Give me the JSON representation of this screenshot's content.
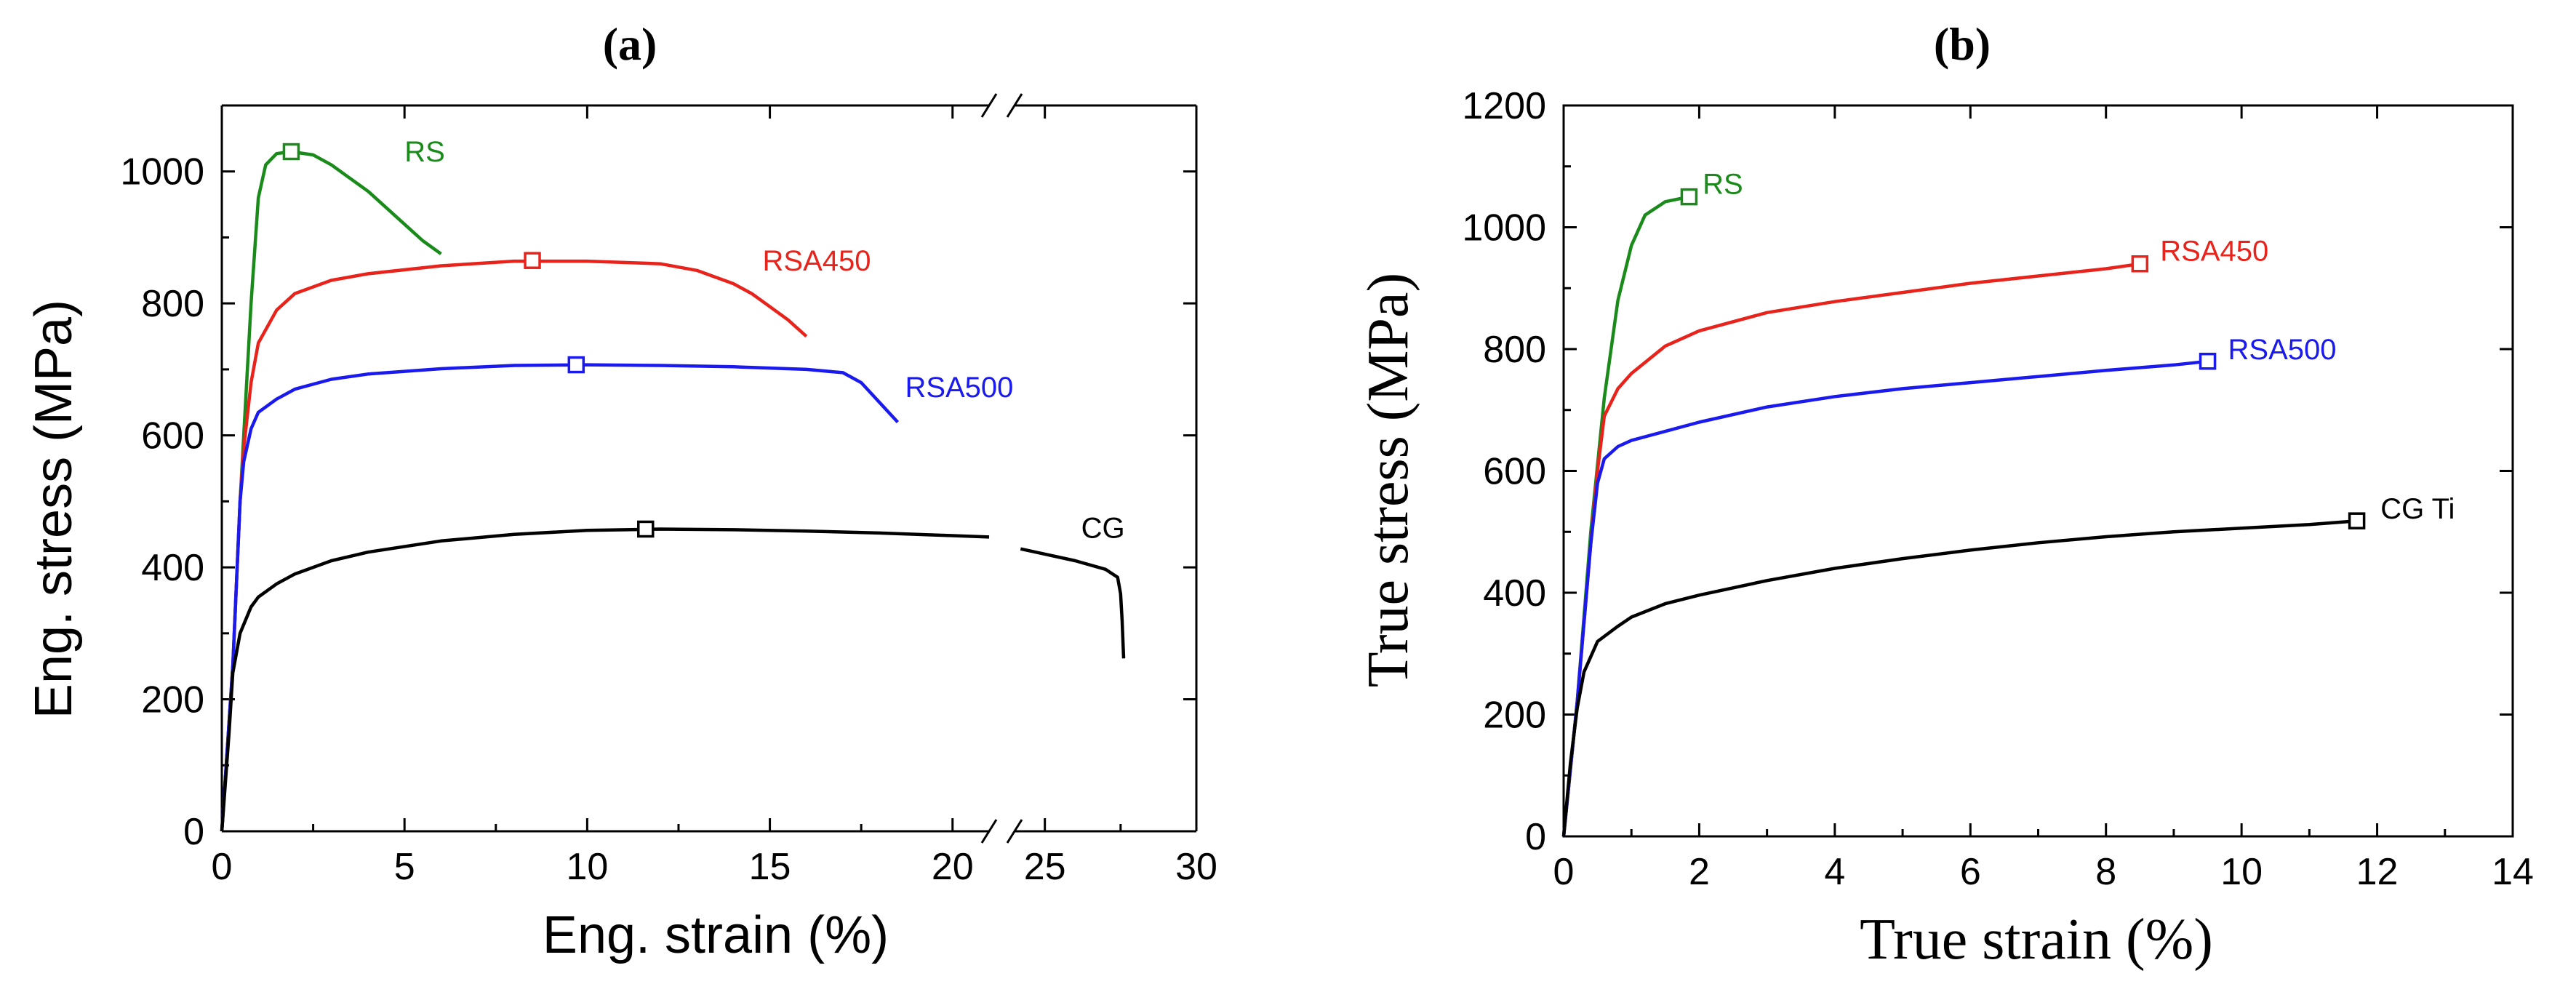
{
  "chart_data": [
    {
      "panel": "(a)",
      "type": "line",
      "xlabel": "Eng. strain (%)",
      "ylabel": "Eng. stress (MPa)",
      "xlim": [
        0,
        30
      ],
      "ylim": [
        0,
        1100
      ],
      "x_break": [
        21,
        24
      ],
      "xticks": [
        0,
        5,
        10,
        15,
        20,
        25,
        30
      ],
      "yticks": [
        0,
        200,
        400,
        600,
        800,
        1000
      ],
      "series": [
        {
          "name": "RS",
          "color": "#1a8a1a",
          "marker": [
            1.9,
            1030
          ],
          "label_at": [
            5.0,
            1015
          ],
          "points": [
            [
              0,
              0
            ],
            [
              0.3,
              250
            ],
            [
              0.5,
              500
            ],
            [
              0.8,
              800
            ],
            [
              1.0,
              960
            ],
            [
              1.2,
              1010
            ],
            [
              1.5,
              1027
            ],
            [
              1.9,
              1030
            ],
            [
              2.5,
              1025
            ],
            [
              3.0,
              1010
            ],
            [
              3.5,
              990
            ],
            [
              4.0,
              970
            ],
            [
              4.5,
              945
            ],
            [
              5.0,
              920
            ],
            [
              5.5,
              895
            ],
            [
              6.0,
              875
            ]
          ]
        },
        {
          "name": "RSA450",
          "color": "#e8231b",
          "marker": [
            8.5,
            865
          ],
          "label_at": [
            14.8,
            850
          ],
          "points": [
            [
              0,
              0
            ],
            [
              0.3,
              250
            ],
            [
              0.5,
              500
            ],
            [
              0.6,
              580
            ],
            [
              0.8,
              680
            ],
            [
              1.0,
              740
            ],
            [
              1.5,
              790
            ],
            [
              2.0,
              815
            ],
            [
              3,
              835
            ],
            [
              4,
              845
            ],
            [
              6,
              857
            ],
            [
              8,
              864
            ],
            [
              10,
              864
            ],
            [
              12,
              860
            ],
            [
              13,
              850
            ],
            [
              14,
              830
            ],
            [
              14.5,
              815
            ],
            [
              15,
              795
            ],
            [
              15.5,
              775
            ],
            [
              16,
              750
            ]
          ]
        },
        {
          "name": "RSA500",
          "color": "#1a1aee",
          "marker": [
            9.7,
            707
          ],
          "label_at": [
            18.7,
            658
          ],
          "points": [
            [
              0,
              0
            ],
            [
              0.3,
              250
            ],
            [
              0.5,
              500
            ],
            [
              0.6,
              560
            ],
            [
              0.8,
              610
            ],
            [
              1.0,
              635
            ],
            [
              1.5,
              655
            ],
            [
              2,
              670
            ],
            [
              3,
              685
            ],
            [
              4,
              693
            ],
            [
              6,
              701
            ],
            [
              8,
              706
            ],
            [
              10,
              707
            ],
            [
              12,
              706
            ],
            [
              14,
              704
            ],
            [
              16,
              700
            ],
            [
              17,
              695
            ],
            [
              17.5,
              680
            ],
            [
              18,
              650
            ],
            [
              18.5,
              620
            ]
          ]
        },
        {
          "name": "CG",
          "color": "#000000",
          "marker": [
            11.6,
            458
          ],
          "label_at": [
            26.2,
            445
          ],
          "points": [
            [
              0,
              0
            ],
            [
              0.2,
              150
            ],
            [
              0.3,
              240
            ],
            [
              0.5,
              300
            ],
            [
              0.8,
              340
            ],
            [
              1,
              355
            ],
            [
              1.5,
              375
            ],
            [
              2,
              390
            ],
            [
              3,
              410
            ],
            [
              4,
              423
            ],
            [
              6,
              440
            ],
            [
              8,
              450
            ],
            [
              10,
              456
            ],
            [
              12,
              458
            ],
            [
              14,
              457
            ],
            [
              16,
              455
            ],
            [
              18,
              452
            ],
            [
              20,
              448
            ],
            [
              21,
              446
            ]
          ],
          "points_after_break": [
            [
              24.2,
              428
            ],
            [
              25,
              420
            ],
            [
              26,
              410
            ],
            [
              27,
              397
            ],
            [
              27.4,
              385
            ],
            [
              27.5,
              360
            ],
            [
              27.55,
              320
            ],
            [
              27.6,
              262
            ]
          ]
        }
      ]
    },
    {
      "panel": "(b)",
      "type": "line",
      "xlabel": "True strain (%)",
      "ylabel": "True stress (MPa)",
      "xlim": [
        0,
        14
      ],
      "ylim": [
        0,
        1200
      ],
      "xticks": [
        0,
        2,
        4,
        6,
        8,
        10,
        12,
        14
      ],
      "yticks": [
        0,
        200,
        400,
        600,
        800,
        1000,
        1200
      ],
      "series": [
        {
          "name": "RS",
          "color": "#1a8a1a",
          "marker": [
            1.85,
            1050
          ],
          "label_at": [
            2.05,
            1055
          ],
          "points": [
            [
              0,
              0
            ],
            [
              0.2,
              220
            ],
            [
              0.4,
              500
            ],
            [
              0.6,
              720
            ],
            [
              0.8,
              880
            ],
            [
              1.0,
              970
            ],
            [
              1.2,
              1020
            ],
            [
              1.5,
              1042
            ],
            [
              1.85,
              1050
            ]
          ]
        },
        {
          "name": "RSA450",
          "color": "#e8231b",
          "marker": [
            8.5,
            940
          ],
          "label_at": [
            8.8,
            945
          ],
          "points": [
            [
              0,
              0
            ],
            [
              0.2,
              220
            ],
            [
              0.4,
              480
            ],
            [
              0.5,
              600
            ],
            [
              0.6,
              690
            ],
            [
              0.8,
              735
            ],
            [
              1,
              760
            ],
            [
              1.5,
              805
            ],
            [
              2,
              830
            ],
            [
              3,
              860
            ],
            [
              4,
              878
            ],
            [
              5,
              893
            ],
            [
              6,
              908
            ],
            [
              7,
              920
            ],
            [
              8,
              932
            ],
            [
              8.5,
              940
            ]
          ]
        },
        {
          "name": "RSA500",
          "color": "#1a1aee",
          "marker": [
            9.5,
            780
          ],
          "label_at": [
            9.8,
            783
          ],
          "points": [
            [
              0,
              0
            ],
            [
              0.2,
              220
            ],
            [
              0.4,
              480
            ],
            [
              0.5,
              580
            ],
            [
              0.6,
              620
            ],
            [
              0.8,
              640
            ],
            [
              1,
              650
            ],
            [
              1.5,
              665
            ],
            [
              2,
              680
            ],
            [
              3,
              705
            ],
            [
              4,
              722
            ],
            [
              5,
              735
            ],
            [
              6,
              745
            ],
            [
              7,
              755
            ],
            [
              8,
              765
            ],
            [
              9,
              774
            ],
            [
              9.5,
              780
            ]
          ]
        },
        {
          "name": "CG Ti",
          "color": "#000000",
          "marker": [
            11.7,
            518
          ],
          "label_at": [
            12.05,
            522
          ],
          "points": [
            [
              0,
              0
            ],
            [
              0.1,
              120
            ],
            [
              0.2,
              210
            ],
            [
              0.3,
              270
            ],
            [
              0.5,
              320
            ],
            [
              0.8,
              345
            ],
            [
              1,
              360
            ],
            [
              1.5,
              382
            ],
            [
              2,
              396
            ],
            [
              3,
              420
            ],
            [
              4,
              440
            ],
            [
              5,
              456
            ],
            [
              6,
              470
            ],
            [
              7,
              482
            ],
            [
              8,
              492
            ],
            [
              9,
              500
            ],
            [
              10,
              506
            ],
            [
              11,
              512
            ],
            [
              11.7,
              518
            ]
          ]
        }
      ]
    }
  ]
}
